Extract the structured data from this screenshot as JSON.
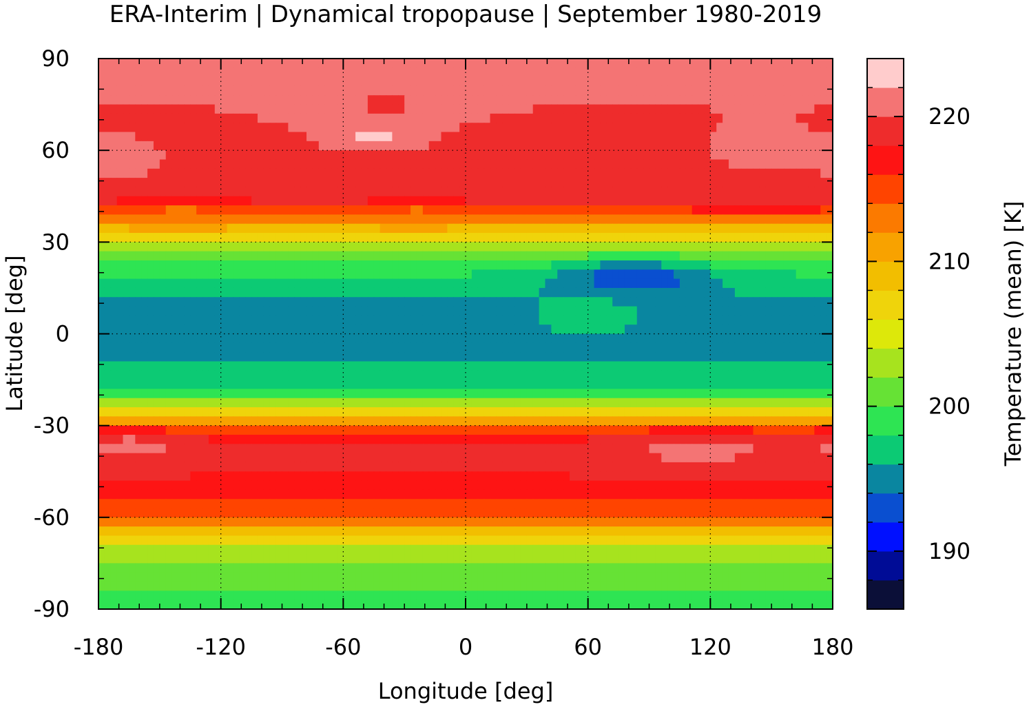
{
  "chart_data": {
    "type": "heatmap",
    "title": "ERA-Interim | Dynamical tropopause | September 1980-2019",
    "xlabel": "Longitude [deg]",
    "ylabel": "Latitude [deg]",
    "xlim": [
      -180,
      180
    ],
    "ylim": [
      -90,
      90
    ],
    "x_ticks": [
      -180,
      -120,
      -60,
      0,
      60,
      120,
      180
    ],
    "x_tick_labels": [
      "-180",
      "-120",
      "-60",
      "0",
      "60",
      "120",
      "180"
    ],
    "y_ticks": [
      90,
      60,
      30,
      0,
      -30,
      -60,
      -90
    ],
    "y_tick_labels": [
      "90",
      "60",
      "30",
      "0",
      "-30",
      "-60",
      "-90"
    ],
    "grid": true,
    "colorbar": {
      "label": "Temperature (mean) [K]",
      "range": [
        186,
        224
      ],
      "ticks": [
        190,
        200,
        210,
        220
      ],
      "tick_labels": [
        "190",
        "200",
        "210",
        "220"
      ],
      "levels": [
        {
          "from": 186,
          "to": 188,
          "color": "#0b0f38"
        },
        {
          "from": 188,
          "to": 190,
          "color": "#000c96"
        },
        {
          "from": 190,
          "to": 192,
          "color": "#0010ff"
        },
        {
          "from": 192,
          "to": 194,
          "color": "#0a4fd0"
        },
        {
          "from": 194,
          "to": 196,
          "color": "#0a86a0"
        },
        {
          "from": 196,
          "to": 198,
          "color": "#0cca74"
        },
        {
          "from": 198,
          "to": 200,
          "color": "#2ee453"
        },
        {
          "from": 200,
          "to": 202,
          "color": "#66e235"
        },
        {
          "from": 202,
          "to": 204,
          "color": "#a7e31e"
        },
        {
          "from": 204,
          "to": 206,
          "color": "#dde80a"
        },
        {
          "from": 206,
          "to": 208,
          "color": "#efd40b"
        },
        {
          "from": 208,
          "to": 210,
          "color": "#f2be00"
        },
        {
          "from": 210,
          "to": 212,
          "color": "#f8a200"
        },
        {
          "from": 212,
          "to": 214,
          "color": "#fb7a00"
        },
        {
          "from": 214,
          "to": 216,
          "color": "#ff4400"
        },
        {
          "from": 216,
          "to": 218,
          "color": "#fe1414"
        },
        {
          "from": 218,
          "to": 220,
          "color": "#ee2c2c"
        },
        {
          "from": 220,
          "to": 222,
          "color": "#f47474"
        },
        {
          "from": 222,
          "to": 224,
          "color": "#ffcccc"
        }
      ]
    },
    "zonal_profile": {
      "lat": [
        -90,
        -82,
        -75,
        -70,
        -66,
        -62,
        -58,
        -52,
        -46,
        -40,
        -36,
        -33,
        -30,
        -27,
        -24,
        -21,
        -17,
        -12,
        -6,
        0,
        6,
        12,
        18,
        22,
        25,
        28,
        31,
        34,
        37,
        40,
        43,
        47,
        55,
        65,
        75,
        90
      ],
      "value": [
        199,
        200.5,
        201.5,
        204,
        207.5,
        212,
        215,
        217,
        218,
        218.5,
        219,
        216,
        212,
        208,
        204,
        200,
        198,
        197,
        195.5,
        195,
        195.2,
        196,
        197.5,
        199,
        201,
        203,
        206,
        209,
        212,
        215.5,
        218,
        218.5,
        219,
        219.5,
        220,
        221
      ]
    },
    "features": [
      {
        "lon": 82,
        "lat": 18,
        "rlon": 38,
        "rlat": 6,
        "value": 192.5
      },
      {
        "lon": 60,
        "lat": 5,
        "rlon": 28,
        "rlat": 7,
        "value": 197
      },
      {
        "lon": -45,
        "lat": 65,
        "rlon": 22,
        "rlat": 5,
        "value": 223
      },
      {
        "lon": -45,
        "lat": 78,
        "rlon": 50,
        "rlat": 12,
        "value": 221
      },
      {
        "lon": -40,
        "lat": 75,
        "rlon": 12,
        "rlat": 4,
        "value": 219
      },
      {
        "lon": -170,
        "lat": 57,
        "rlon": 20,
        "rlat": 6,
        "value": 222
      },
      {
        "lon": 145,
        "lat": 60,
        "rlon": 35,
        "rlat": 11,
        "value": 220.5
      },
      {
        "lon": 115,
        "lat": -38,
        "rlon": 45,
        "rlat": 7,
        "value": 220.5
      },
      {
        "lon": -165,
        "lat": -37,
        "rlon": 30,
        "rlat": 6,
        "value": 220.5
      },
      {
        "lon": -140,
        "lat": 38,
        "rlon": 20,
        "rlat": 5,
        "value": 213
      },
      {
        "lon": -25,
        "lat": 38,
        "rlon": 15,
        "rlat": 4,
        "value": 213
      }
    ]
  }
}
